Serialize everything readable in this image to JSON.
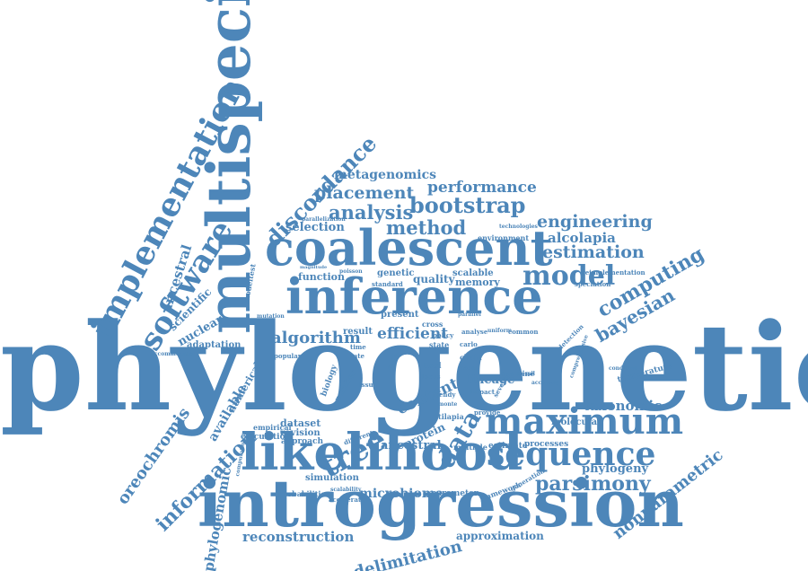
{
  "theme": {
    "word_color": "#4d86b9",
    "background": "#ffffff"
  },
  "words": [
    "phylogenetic",
    "multispecies",
    "introgression",
    "likelihood",
    "inference",
    "coalescent",
    "maximum",
    "sequence",
    "implementation",
    "software",
    "discordance",
    "bootstrap",
    "placement",
    "performance",
    "metagenomics",
    "analysis",
    "method",
    "selection",
    "engineering",
    "alcolapia",
    "estimation",
    "model",
    "computing",
    "bayesian",
    "algorithm",
    "efficient",
    "tree",
    "data",
    "content",
    "lineage",
    "taxonomic",
    "molecular",
    "phylogeny",
    "parsimony",
    "nonparametric",
    "information",
    "oreochromis",
    "phylogenomic",
    "reconstruction",
    "delimitation",
    "approximation",
    "microbiome",
    "ancestral",
    "metabarcoding",
    "scientific",
    "nuclear",
    "adaptation",
    "available",
    "numerical",
    "function",
    "quality",
    "memory",
    "scalable",
    "genetic",
    "present",
    "result",
    "protein",
    "dataset",
    "revision",
    "approach",
    "empirical",
    "calculation",
    "simulation",
    "probabilities",
    "parameter",
    "framework",
    "generation",
    "estimate",
    "processes",
    "multiple",
    "different",
    "environment",
    "technologies",
    "reimplementation",
    "speciation",
    "detection",
    "comprehensive",
    "condition",
    "temperature",
    "accuracy",
    "impact",
    "examine",
    "chain",
    "carlo",
    "monte",
    "tilapia",
    "common",
    "uniform",
    "parallel",
    "standard",
    "poisson",
    "magnitude",
    "popular",
    "rate",
    "time",
    "issue",
    "number",
    "biology",
    "tool",
    "state",
    "fast",
    "cross",
    "policy",
    "modeltest",
    "mutation",
    "parallelization",
    "analyse",
    "provide",
    "trendy",
    "several",
    "accelerate",
    "scalability",
    "computational",
    "accommodate",
    "fossil",
    "locus",
    "recent"
  ]
}
